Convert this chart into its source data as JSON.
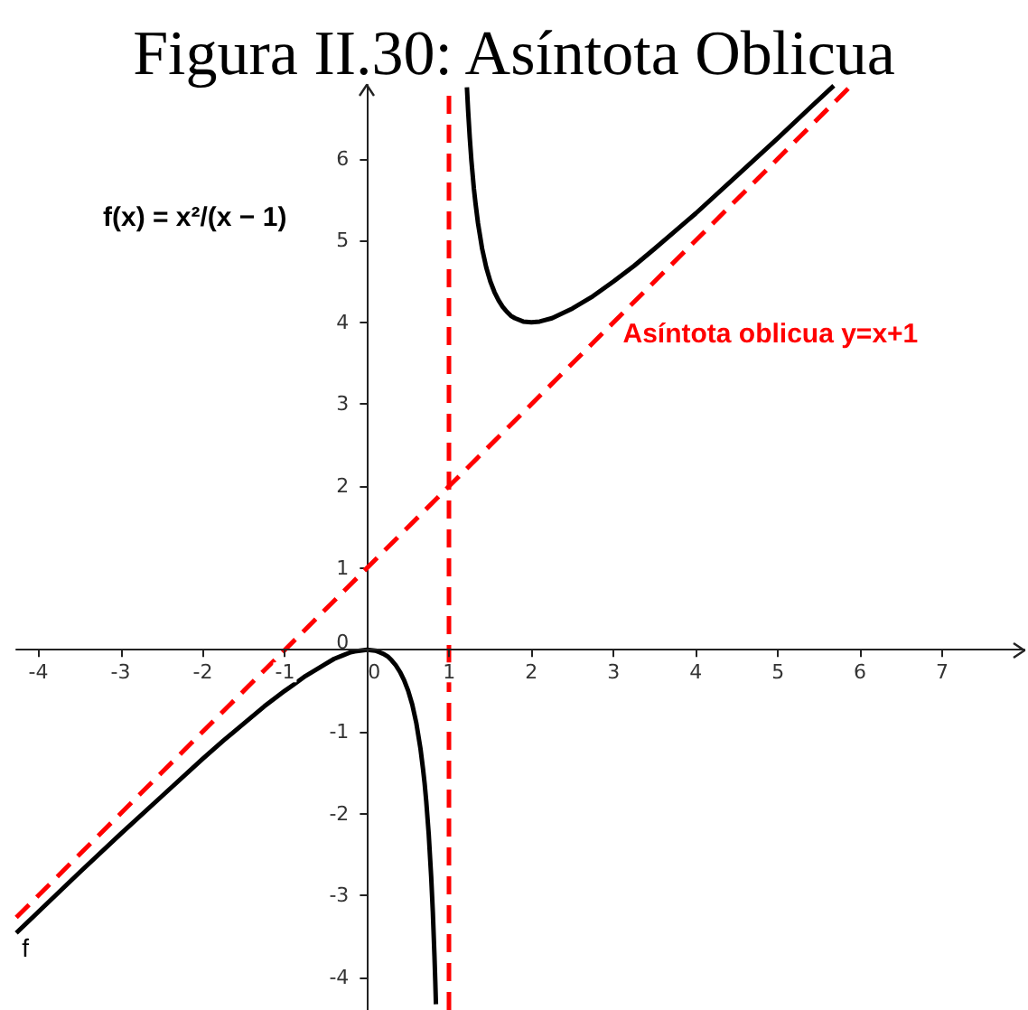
{
  "chart_data": {
    "type": "line",
    "title": "Figura II.30: Asíntota Oblicua",
    "annotations": [
      "f(x) = x²/(x − 1)"
    ],
    "xlim": [
      -4.27,
      8
    ],
    "ylim": [
      -4.4,
      6.9
    ],
    "xticks": [
      -4,
      -3,
      -2,
      -1,
      0,
      1,
      2,
      3,
      4,
      5,
      6,
      7
    ],
    "yticks": [
      -4,
      -3,
      -2,
      -1,
      0,
      1,
      2,
      3,
      4,
      5,
      6
    ],
    "marker": "none",
    "series": [
      {
        "name": "f",
        "color": "#000000",
        "line_style": "solid",
        "x": [
          -4.27,
          -4,
          -3.5,
          -3,
          -2.5,
          -2,
          -1.75,
          -1.5,
          -1.25,
          -1,
          -0.9,
          -0.75,
          -0.6,
          -0.5,
          -0.4,
          -0.3,
          -0.2,
          -0.15,
          0,
          0.1,
          0.15,
          0.2,
          0.25,
          0.3,
          0.35,
          0.4,
          0.45,
          0.5,
          0.55,
          0.6,
          0.65,
          0.68,
          0.7,
          0.72,
          0.75,
          0.78,
          0.8,
          0.82,
          0.83,
          0.838,
          1,
          1.215,
          1.23,
          1.25,
          1.27,
          1.3,
          1.32,
          1.35,
          1.4,
          1.45,
          1.5,
          1.55,
          1.6,
          1.65,
          1.7,
          1.75,
          1.8,
          1.9,
          2,
          2.1,
          2.25,
          2.5,
          2.75,
          3,
          3.25,
          3.5,
          4,
          4.5,
          5,
          5.4,
          5.68
        ],
        "values": [
          -3.46,
          -3.2,
          -2.72,
          -2.25,
          -1.79,
          -1.33,
          -1.11,
          -0.9,
          -0.69,
          -0.5,
          -0.43,
          -0.32,
          -0.23,
          -0.17,
          -0.11,
          -0.07,
          -0.03,
          -0.02,
          0,
          -0.01,
          -0.03,
          -0.05,
          -0.08,
          -0.13,
          -0.19,
          -0.27,
          -0.37,
          -0.5,
          -0.67,
          -0.9,
          -1.21,
          -1.45,
          -1.63,
          -1.85,
          -2.25,
          -2.77,
          -3.2,
          -3.74,
          -4.05,
          -4.33,
          null,
          6.87,
          6.58,
          6.25,
          5.97,
          5.63,
          5.45,
          5.21,
          4.9,
          4.67,
          4.5,
          4.37,
          4.27,
          4.19,
          4.13,
          4.08,
          4.05,
          4.01,
          4,
          4.01,
          4.05,
          4.17,
          4.32,
          4.5,
          4.69,
          4.9,
          5.33,
          5.79,
          6.25,
          6.63,
          6.89
        ]
      },
      {
        "name": "Asíntota oblicua y=x+1",
        "color": "#ff0000",
        "line_style": "dashed",
        "x": [
          -4.27,
          5.9
        ],
        "values": [
          -3.27,
          6.9
        ]
      }
    ],
    "ref_lines": [
      {
        "axis": "x",
        "value": 1,
        "color": "#ff0000",
        "line_style": "dashed"
      }
    ]
  }
}
